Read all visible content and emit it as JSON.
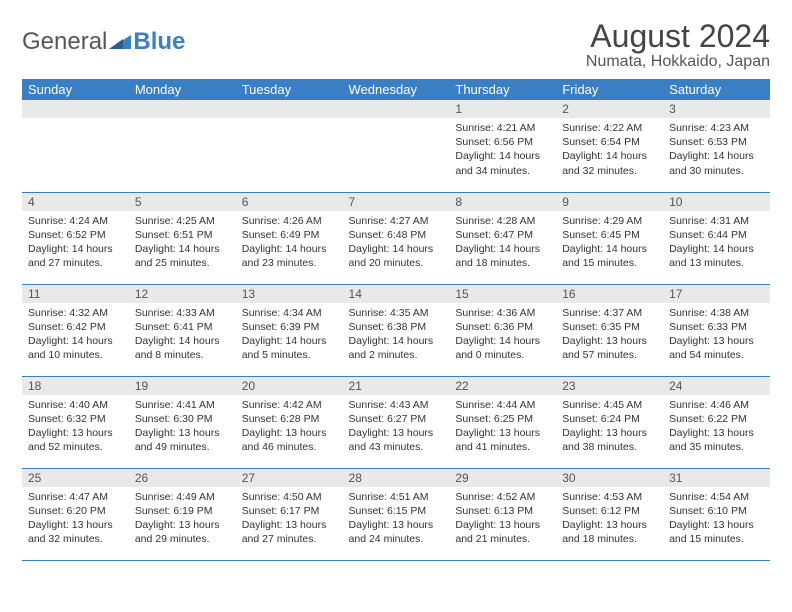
{
  "brand": {
    "general": "General",
    "blue": "Blue"
  },
  "title": "August 2024",
  "location": "Numata, Hokkaido, Japan",
  "colors": {
    "header_bg": "#3a7fc4",
    "header_fg": "#ffffff",
    "daynum_bg": "#e9e9e9",
    "rule": "#3a7fc4",
    "logo_accent": "#3a7fc4",
    "logo_text": "#555555"
  },
  "fonts": {
    "title_size": 32,
    "location_size": 16,
    "th_size": 13,
    "daynum_size": 12,
    "body_size": 10.5
  },
  "day_labels": [
    "Sunday",
    "Monday",
    "Tuesday",
    "Wednesday",
    "Thursday",
    "Friday",
    "Saturday"
  ],
  "weeks": [
    [
      null,
      null,
      null,
      null,
      {
        "n": "1",
        "sr": "4:21 AM",
        "ss": "6:56 PM",
        "dl": "14 hours and 34 minutes."
      },
      {
        "n": "2",
        "sr": "4:22 AM",
        "ss": "6:54 PM",
        "dl": "14 hours and 32 minutes."
      },
      {
        "n": "3",
        "sr": "4:23 AM",
        "ss": "6:53 PM",
        "dl": "14 hours and 30 minutes."
      }
    ],
    [
      {
        "n": "4",
        "sr": "4:24 AM",
        "ss": "6:52 PM",
        "dl": "14 hours and 27 minutes."
      },
      {
        "n": "5",
        "sr": "4:25 AM",
        "ss": "6:51 PM",
        "dl": "14 hours and 25 minutes."
      },
      {
        "n": "6",
        "sr": "4:26 AM",
        "ss": "6:49 PM",
        "dl": "14 hours and 23 minutes."
      },
      {
        "n": "7",
        "sr": "4:27 AM",
        "ss": "6:48 PM",
        "dl": "14 hours and 20 minutes."
      },
      {
        "n": "8",
        "sr": "4:28 AM",
        "ss": "6:47 PM",
        "dl": "14 hours and 18 minutes."
      },
      {
        "n": "9",
        "sr": "4:29 AM",
        "ss": "6:45 PM",
        "dl": "14 hours and 15 minutes."
      },
      {
        "n": "10",
        "sr": "4:31 AM",
        "ss": "6:44 PM",
        "dl": "14 hours and 13 minutes."
      }
    ],
    [
      {
        "n": "11",
        "sr": "4:32 AM",
        "ss": "6:42 PM",
        "dl": "14 hours and 10 minutes."
      },
      {
        "n": "12",
        "sr": "4:33 AM",
        "ss": "6:41 PM",
        "dl": "14 hours and 8 minutes."
      },
      {
        "n": "13",
        "sr": "4:34 AM",
        "ss": "6:39 PM",
        "dl": "14 hours and 5 minutes."
      },
      {
        "n": "14",
        "sr": "4:35 AM",
        "ss": "6:38 PM",
        "dl": "14 hours and 2 minutes."
      },
      {
        "n": "15",
        "sr": "4:36 AM",
        "ss": "6:36 PM",
        "dl": "14 hours and 0 minutes."
      },
      {
        "n": "16",
        "sr": "4:37 AM",
        "ss": "6:35 PM",
        "dl": "13 hours and 57 minutes."
      },
      {
        "n": "17",
        "sr": "4:38 AM",
        "ss": "6:33 PM",
        "dl": "13 hours and 54 minutes."
      }
    ],
    [
      {
        "n": "18",
        "sr": "4:40 AM",
        "ss": "6:32 PM",
        "dl": "13 hours and 52 minutes."
      },
      {
        "n": "19",
        "sr": "4:41 AM",
        "ss": "6:30 PM",
        "dl": "13 hours and 49 minutes."
      },
      {
        "n": "20",
        "sr": "4:42 AM",
        "ss": "6:28 PM",
        "dl": "13 hours and 46 minutes."
      },
      {
        "n": "21",
        "sr": "4:43 AM",
        "ss": "6:27 PM",
        "dl": "13 hours and 43 minutes."
      },
      {
        "n": "22",
        "sr": "4:44 AM",
        "ss": "6:25 PM",
        "dl": "13 hours and 41 minutes."
      },
      {
        "n": "23",
        "sr": "4:45 AM",
        "ss": "6:24 PM",
        "dl": "13 hours and 38 minutes."
      },
      {
        "n": "24",
        "sr": "4:46 AM",
        "ss": "6:22 PM",
        "dl": "13 hours and 35 minutes."
      }
    ],
    [
      {
        "n": "25",
        "sr": "4:47 AM",
        "ss": "6:20 PM",
        "dl": "13 hours and 32 minutes."
      },
      {
        "n": "26",
        "sr": "4:49 AM",
        "ss": "6:19 PM",
        "dl": "13 hours and 29 minutes."
      },
      {
        "n": "27",
        "sr": "4:50 AM",
        "ss": "6:17 PM",
        "dl": "13 hours and 27 minutes."
      },
      {
        "n": "28",
        "sr": "4:51 AM",
        "ss": "6:15 PM",
        "dl": "13 hours and 24 minutes."
      },
      {
        "n": "29",
        "sr": "4:52 AM",
        "ss": "6:13 PM",
        "dl": "13 hours and 21 minutes."
      },
      {
        "n": "30",
        "sr": "4:53 AM",
        "ss": "6:12 PM",
        "dl": "13 hours and 18 minutes."
      },
      {
        "n": "31",
        "sr": "4:54 AM",
        "ss": "6:10 PM",
        "dl": "13 hours and 15 minutes."
      }
    ]
  ],
  "labels": {
    "sunrise": "Sunrise:",
    "sunset": "Sunset:",
    "daylight": "Daylight:"
  }
}
